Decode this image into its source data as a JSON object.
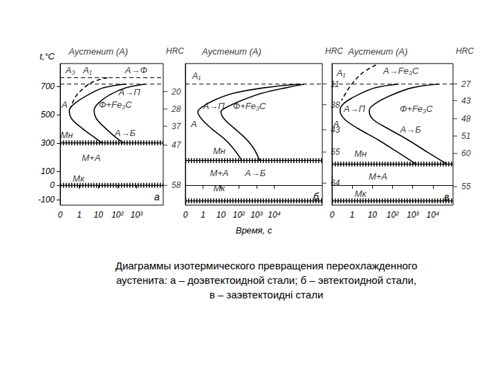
{
  "chart_data": [
    {
      "type": "line",
      "title": "а",
      "ylabel": "t,°C",
      "log": "x",
      "grid": false,
      "color": "#000000",
      "xlim": [
        0.1,
        25000
      ],
      "xticks": [
        {
          "value": 0.1,
          "label": "0"
        },
        1,
        10,
        {
          "value": 100,
          "label": "10²"
        },
        {
          "value": 1000,
          "label": "10³"
        }
      ],
      "ylim": [
        -140,
        860
      ],
      "yticks": [
        -100,
        0,
        100,
        300,
        500,
        700
      ],
      "series": [
        {
          "x": [
            30,
            5,
            1.5,
            0.6,
            0.35
          ],
          "values": [
            760,
            730,
            680,
            620,
            545
          ],
          "line_style": "dashed"
        },
        {
          "x": [
            300,
            20,
            3,
            0.6,
            0.3,
            0.4,
            1.5,
            6,
            15
          ],
          "values": [
            715,
            690,
            640,
            580,
            530,
            470,
            400,
            340,
            300
          ],
          "line_style": "solid"
        },
        {
          "x": [
            3000,
            300,
            40,
            10,
            6,
            8,
            25,
            80,
            200
          ],
          "values": [
            715,
            690,
            640,
            580,
            530,
            470,
            400,
            340,
            300
          ],
          "line_style": "solid"
        }
      ],
      "levels": [
        {
          "value": 760,
          "line_style": "dashed"
        },
        {
          "value": 715,
          "line_style": "dashed"
        },
        {
          "value": 300,
          "line_style": "hatched"
        },
        {
          "value": 0,
          "line_style": "hatched"
        }
      ],
      "hardness": {
        "title": "HRC",
        "t": [
          662,
          539,
          417,
          284,
          0
        ],
        "values": [
          20,
          28,
          37,
          47,
          58
        ]
      },
      "annotations": [
        {
          "text": "Аустенит (А)",
          "x": 10,
          "y": 945
        },
        {
          "text": "А₃",
          "x": 0.34,
          "y": 815
        },
        {
          "text": "А₁",
          "x": 2.7,
          "y": 815
        },
        {
          "text": "А→Ф",
          "x": 950,
          "y": 815
        },
        {
          "text": "А→П",
          "x": 420,
          "y": 660
        },
        {
          "text": "А",
          "x": 0.17,
          "y": 569
        },
        {
          "text": "Ф+Fe₃C",
          "x": 78,
          "y": 569
        },
        {
          "text": "Мн",
          "x": 0.22,
          "y": 353
        },
        {
          "text": "А→Б",
          "x": 250,
          "y": 368
        },
        {
          "text": "М+А",
          "x": 4.2,
          "y": 196
        },
        {
          "text": "Мк",
          "x": 0.92,
          "y": 49
        }
      ]
    },
    {
      "type": "line",
      "title": "б",
      "xlabel": "Время, с",
      "log": "x",
      "grid": false,
      "tick_labels": "x",
      "color": "#000000",
      "xlim": [
        0.1,
        5000000
      ],
      "xticks": [
        {
          "value": 0.1,
          "label": "0"
        },
        1,
        10,
        {
          "value": 100,
          "label": "10²"
        },
        {
          "value": 1000,
          "label": "10³"
        },
        {
          "value": 10000,
          "label": "10⁴"
        }
      ],
      "ylim": [
        -140,
        860
      ],
      "series": [
        {
          "x": [
            300000,
            3000,
            50,
            4,
            0.8,
            0.5,
            0.8,
            3,
            15,
            50,
            150
          ],
          "values": [
            715,
            690,
            650,
            600,
            550,
            520,
            470,
            400,
            330,
            260,
            175
          ],
          "line_style": "solid"
        },
        {
          "x": [
            500000,
            50000,
            2000,
            150,
            20,
            10,
            15,
            60,
            250,
            700,
            1500
          ],
          "values": [
            715,
            690,
            650,
            600,
            550,
            520,
            470,
            400,
            330,
            260,
            175
          ],
          "line_style": "solid"
        }
      ],
      "levels": [
        {
          "value": 715,
          "line_style": "dashed"
        },
        {
          "value": 175,
          "line_style": "hatched"
        },
        {
          "value": -110,
          "line_style": "hatched"
        }
      ],
      "hardness": {
        "title": "HRC",
        "t": [
          716,
          569,
          392,
          235,
          15
        ],
        "values": [
          11,
          38,
          43,
          55,
          64
        ]
      },
      "annotations": [
        {
          "text": "Аустенит (А)",
          "x": 40,
          "y": 945
        },
        {
          "text": "А₁",
          "x": 0.42,
          "y": 775
        },
        {
          "text": "А→П",
          "x": 4,
          "y": 560
        },
        {
          "text": "Ф+Fe₃C",
          "x": 400,
          "y": 560
        },
        {
          "text": "А",
          "x": 0.3,
          "y": 431
        },
        {
          "text": "Мн",
          "x": 8,
          "y": 245
        },
        {
          "text": "М+А",
          "x": 8,
          "y": 88
        },
        {
          "text": "А→Б",
          "x": 850,
          "y": 88
        },
        {
          "text": "Мк",
          "x": 8,
          "y": -20
        }
      ]
    },
    {
      "type": "line",
      "title": "в",
      "log": "x",
      "grid": false,
      "tick_labels": "x",
      "color": "#000000",
      "xlim": [
        0.1,
        100000
      ],
      "xticks": [
        {
          "value": 0.1,
          "label": "0"
        },
        1,
        10,
        {
          "value": 100,
          "label": "10²"
        },
        {
          "value": 1000,
          "label": "10³"
        },
        {
          "value": 10000,
          "label": "10⁴"
        }
      ],
      "ylim": [
        -140,
        860
      ],
      "series": [
        {
          "x": [
            15,
            3,
            0.8,
            0.3
          ],
          "values": [
            850,
            790,
            700,
            600
          ],
          "line_style": "dashed"
        },
        {
          "x": [
            200,
            15,
            2,
            0.4,
            0.25,
            0.4,
            2,
            20,
            200,
            1500
          ],
          "values": [
            715,
            690,
            640,
            580,
            530,
            470,
            400,
            320,
            230,
            150
          ],
          "line_style": "solid"
        },
        {
          "x": [
            20000,
            1000,
            100,
            15,
            7,
            10,
            60,
            600,
            6000,
            50000
          ],
          "values": [
            715,
            690,
            640,
            580,
            530,
            470,
            400,
            320,
            230,
            150
          ],
          "line_style": "solid"
        }
      ],
      "levels": [
        {
          "value": 715,
          "line_style": "dashed"
        },
        {
          "value": 150,
          "line_style": "hatched"
        },
        {
          "value": -110,
          "line_style": "hatched"
        }
      ],
      "hardness": {
        "title": "HRC",
        "t": [
          716,
          598,
          471,
          348,
          225,
          -10
        ],
        "values": [
          27,
          43,
          48,
          51,
          60,
          55
        ]
      },
      "annotations": [
        {
          "text": "Аустенит (А)",
          "x": 19,
          "y": 945
        },
        {
          "text": "А₁",
          "x": 0.28,
          "y": 794
        },
        {
          "text": "А→Fe₃C",
          "x": 260,
          "y": 809
        },
        {
          "text": "А→П",
          "x": 1.3,
          "y": 539
        },
        {
          "text": "Ф+Fe₃C",
          "x": 1500,
          "y": 539
        },
        {
          "text": "А",
          "x": 0.16,
          "y": 431
        },
        {
          "text": "А→Б",
          "x": 780,
          "y": 392
        },
        {
          "text": "Мн",
          "x": 2.6,
          "y": 225
        },
        {
          "text": "М+А",
          "x": 19,
          "y": 64
        },
        {
          "text": "Мк",
          "x": 2.6,
          "y": -59
        }
      ]
    }
  ],
  "caption": [
    "Диаграммы изотермического превращения переохлажденного",
    "аустенита: а – доэвтектоидной стали; б – эвтектоидной стали,",
    "в – заэвтектоидні стали"
  ]
}
